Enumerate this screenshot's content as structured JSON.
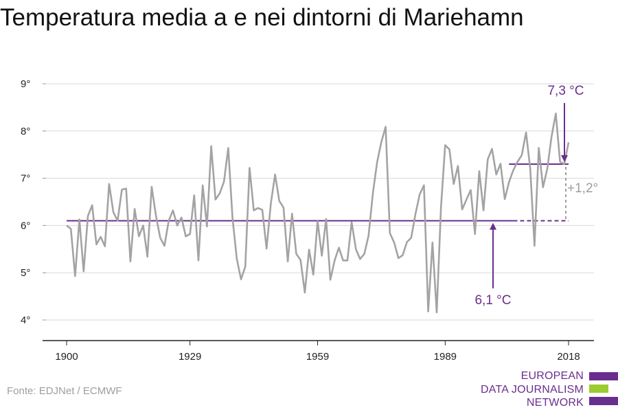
{
  "title": "Temperatura media a e nei dintorni di Mariehamn",
  "source": "Fonte: EDJNet / ECMWF",
  "logo": {
    "lines": [
      "EUROPEAN",
      "DATA JOURNALISM",
      "NETWORK"
    ],
    "colors": {
      "text": "#6a2e8e",
      "bar_purple": "#6a2e8e",
      "bar_green": "#9ccc2f"
    }
  },
  "colors": {
    "series": "#a3a3a3",
    "reference": "#6a2e8e",
    "grid": "#d9d9d9",
    "axis": "#222222",
    "difference": "#9e9e9e"
  },
  "chart_data": {
    "type": "line",
    "title": "Temperatura media a e nei dintorni di Mariehamn",
    "xlim": [
      1900,
      2018
    ],
    "ylim": [
      4,
      9
    ],
    "xticks": [
      1900,
      1929,
      1959,
      1989,
      2018
    ],
    "xtick_labels": [
      "1900",
      "1929",
      "1959",
      "1989",
      "2018"
    ],
    "yticks": [
      4,
      5,
      6,
      7,
      8,
      9
    ],
    "ytick_labels": [
      "4°",
      "5°",
      "6°",
      "7°",
      "8°",
      "9°"
    ],
    "grid": true,
    "series": [
      {
        "x": [
          1900,
          1901,
          1902,
          1903,
          1904,
          1905,
          1906,
          1907,
          1908,
          1909,
          1910,
          1911,
          1912,
          1913,
          1914,
          1915,
          1916,
          1917,
          1918,
          1919,
          1920,
          1921,
          1922,
          1923,
          1924,
          1925,
          1926,
          1927,
          1928,
          1929,
          1930,
          1931,
          1932,
          1933,
          1934,
          1935,
          1936,
          1937,
          1938,
          1939,
          1940,
          1941,
          1942,
          1943,
          1944,
          1945,
          1946,
          1947,
          1948,
          1949,
          1950,
          1951,
          1952,
          1953,
          1954,
          1955,
          1956,
          1957,
          1958,
          1959,
          1960,
          1961,
          1962,
          1963,
          1964,
          1965,
          1966,
          1967,
          1968,
          1969,
          1970,
          1971,
          1972,
          1973,
          1974,
          1975,
          1976,
          1977,
          1978,
          1979,
          1980,
          1981,
          1982,
          1983,
          1984,
          1985,
          1986,
          1987,
          1988,
          1989,
          1990,
          1991,
          1992,
          1993,
          1994,
          1995,
          1996,
          1997,
          1998,
          1999,
          2000,
          2001,
          2002,
          2003,
          2004,
          2005,
          2006,
          2007,
          2008,
          2009,
          2010,
          2011,
          2012,
          2013,
          2014,
          2015,
          2016,
          2017,
          2018
        ],
        "values": [
          6.0,
          5.93,
          4.93,
          6.13,
          5.03,
          6.2,
          6.43,
          5.6,
          5.76,
          5.56,
          6.88,
          6.28,
          6.1,
          6.76,
          6.78,
          5.24,
          6.35,
          5.77,
          6.0,
          5.34,
          6.82,
          6.21,
          5.74,
          5.57,
          6.1,
          6.32,
          6.0,
          6.17,
          5.77,
          5.82,
          6.64,
          5.26,
          6.85,
          5.98,
          7.68,
          6.55,
          6.68,
          6.93,
          7.64,
          6.16,
          5.3,
          4.86,
          5.13,
          7.22,
          6.32,
          6.37,
          6.33,
          5.51,
          6.46,
          7.08,
          6.52,
          6.38,
          5.24,
          6.25,
          5.4,
          5.27,
          4.58,
          5.49,
          4.96,
          6.09,
          5.36,
          6.14,
          4.85,
          5.26,
          5.53,
          5.26,
          5.26,
          6.07,
          5.5,
          5.29,
          5.4,
          5.79,
          6.68,
          7.34,
          7.77,
          8.09,
          5.84,
          5.64,
          5.31,
          5.37,
          5.65,
          5.74,
          6.24,
          6.66,
          6.85,
          4.18,
          5.64,
          4.16,
          6.38,
          7.7,
          7.61,
          6.88,
          7.26,
          6.34,
          6.55,
          6.75,
          5.82,
          7.15,
          6.32,
          7.4,
          7.62,
          7.08,
          7.31,
          6.56,
          6.92,
          7.17,
          7.35,
          7.49,
          7.97,
          7.2,
          5.57,
          7.64,
          6.81,
          7.2,
          7.88,
          8.37,
          7.35,
          7.3,
          7.76
        ]
      }
    ],
    "reference_lines": [
      {
        "label": "6,1 °C",
        "value": 6.1,
        "x_start": 1900,
        "x_end": 2005,
        "dashed_x_end": 2018
      },
      {
        "label": "7,3 °C",
        "value": 7.3,
        "x_start": 2004,
        "x_end": 2018
      }
    ],
    "difference_label": "+1,2°"
  }
}
